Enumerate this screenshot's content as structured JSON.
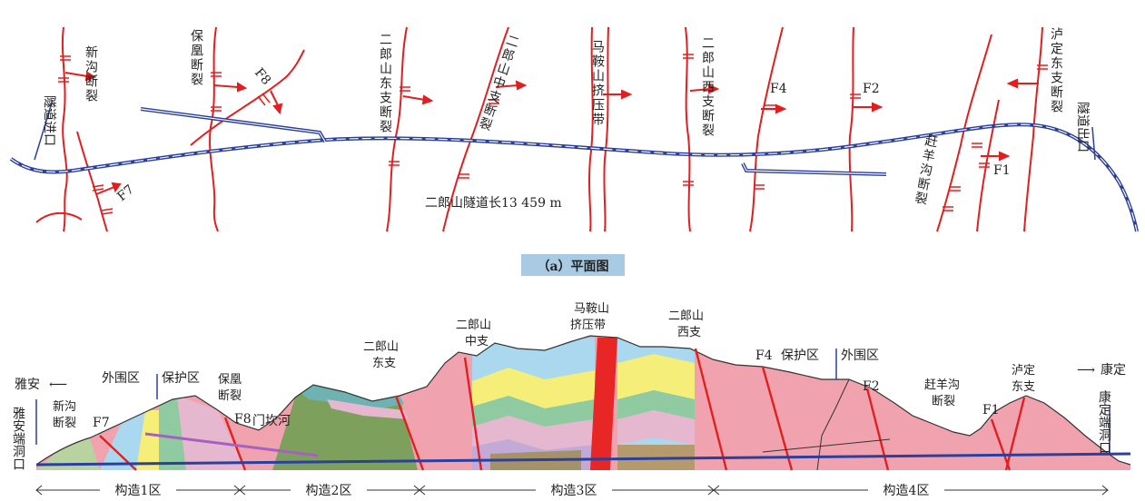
{
  "plan": {
    "caption": "（a）平面图",
    "tunnel_length_label": "二郎山隧道长13 459 m",
    "entrance_label": "隧道进口",
    "exit_label": "隧道出口",
    "faults": {
      "xingou": "新沟断裂",
      "baohuang": "保凰断裂",
      "east_branch": "二郎山东支断裂",
      "middle_branch": "二郎山中支断裂",
      "maanshan": "马鞍山挤压带",
      "west_branch": "二郎山西支断裂",
      "luding": "泸定东支断裂",
      "ganyanggou": "赶羊沟断裂",
      "F7": "F7",
      "F8": "F8",
      "F4": "F4",
      "F2": "F2",
      "F1": "F1"
    }
  },
  "section": {
    "left_town": "雅安",
    "right_town": "康定",
    "left_portal": "雅安端洞口",
    "right_portal": "康定端洞口",
    "left_outer": "外围区",
    "left_protect": "保护区",
    "right_protect": "保护区",
    "right_outer": "外围区",
    "river": "门坎河",
    "faults": {
      "xingou": "新沟断裂",
      "F7": "F7",
      "baohuang": "保凰断裂",
      "F8": "F8",
      "east": "二郎山东支",
      "middle": "二郎山中支",
      "maanshan": "马鞍山挤压带",
      "west": "二郎山西支",
      "F4": "F4",
      "F2": "F2",
      "ganyanggou": "赶羊沟断裂",
      "F1": "F1",
      "luding": "泸定东支"
    },
    "zones": [
      "构造1区",
      "构造2区",
      "构造3区",
      "构造4区"
    ]
  },
  "colors": {
    "fault": "#e02020",
    "tunnel": "#2a3f9e",
    "pink_rock": "#f0a3ae",
    "caption_bg": "#a8cbe3"
  }
}
